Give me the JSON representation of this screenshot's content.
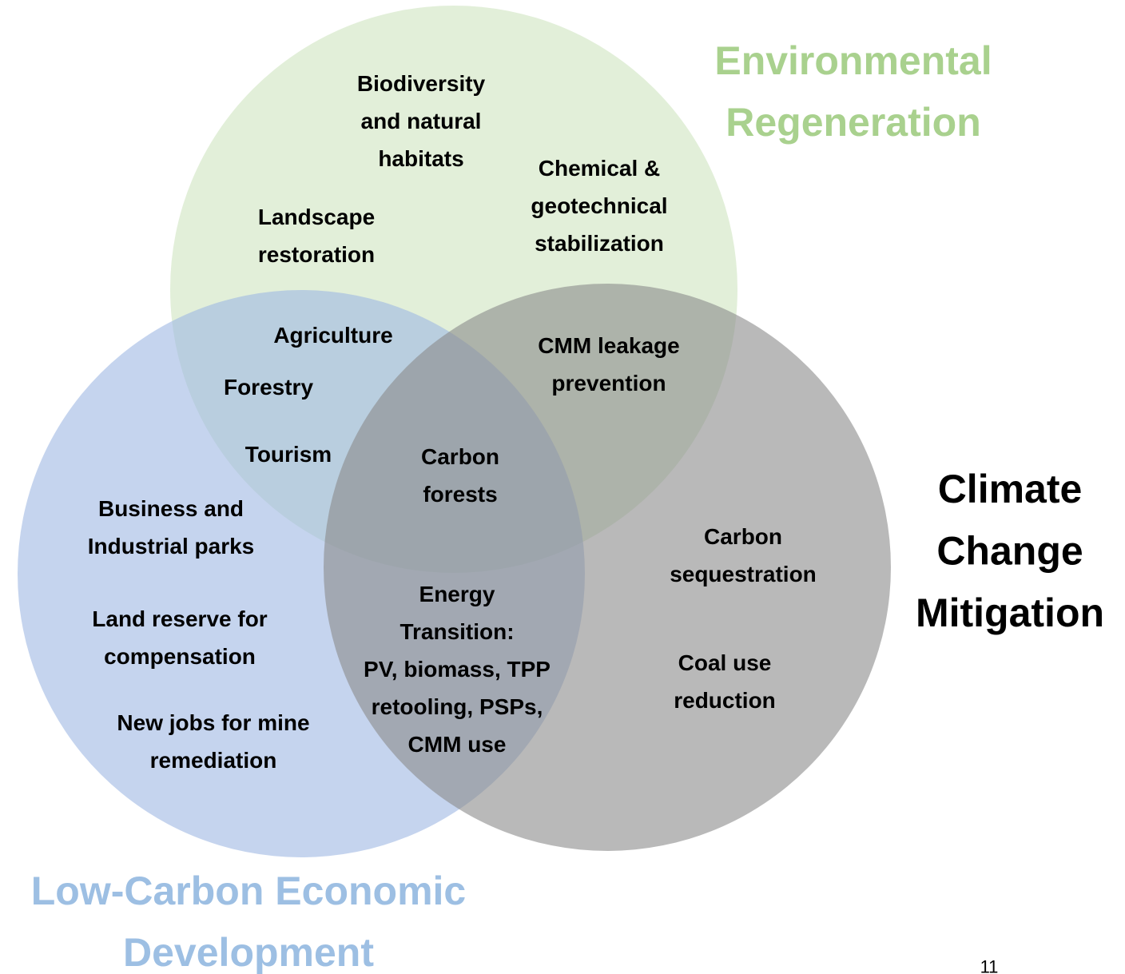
{
  "sets": [
    {
      "name": "environmental",
      "lines": [
        "Environmental",
        "Regeneration"
      ]
    },
    {
      "name": "climate",
      "lines": [
        "Climate",
        "Change",
        "Mitigation"
      ]
    },
    {
      "name": "economic",
      "lines": [
        "Low-Carbon Economic",
        "Development"
      ]
    }
  ],
  "items": [
    {
      "lines": [
        "Biodiversity",
        "and natural",
        "habitats"
      ]
    },
    {
      "lines": [
        "Chemical &",
        "geotechnical",
        "stabilization"
      ]
    },
    {
      "lines": [
        "Landscape",
        "restoration"
      ]
    },
    {
      "lines": [
        "Agriculture"
      ]
    },
    {
      "lines": [
        "Forestry"
      ]
    },
    {
      "lines": [
        "Tourism"
      ]
    },
    {
      "lines": [
        "CMM leakage",
        "prevention"
      ]
    },
    {
      "lines": [
        "Carbon",
        "forests"
      ]
    },
    {
      "lines": [
        "Business and",
        "Industrial parks"
      ]
    },
    {
      "lines": [
        "Carbon",
        "sequestration"
      ]
    },
    {
      "lines": [
        "Land reserve for",
        "compensation"
      ]
    },
    {
      "lines": [
        "Energy",
        "Transition:",
        "PV, biomass, TPP",
        "retooling, PSPs,",
        "CMM use"
      ]
    },
    {
      "lines": [
        "Coal use",
        "reduction"
      ]
    },
    {
      "lines": [
        "New jobs for mine",
        "remediation"
      ]
    }
  ],
  "page_number": "11"
}
